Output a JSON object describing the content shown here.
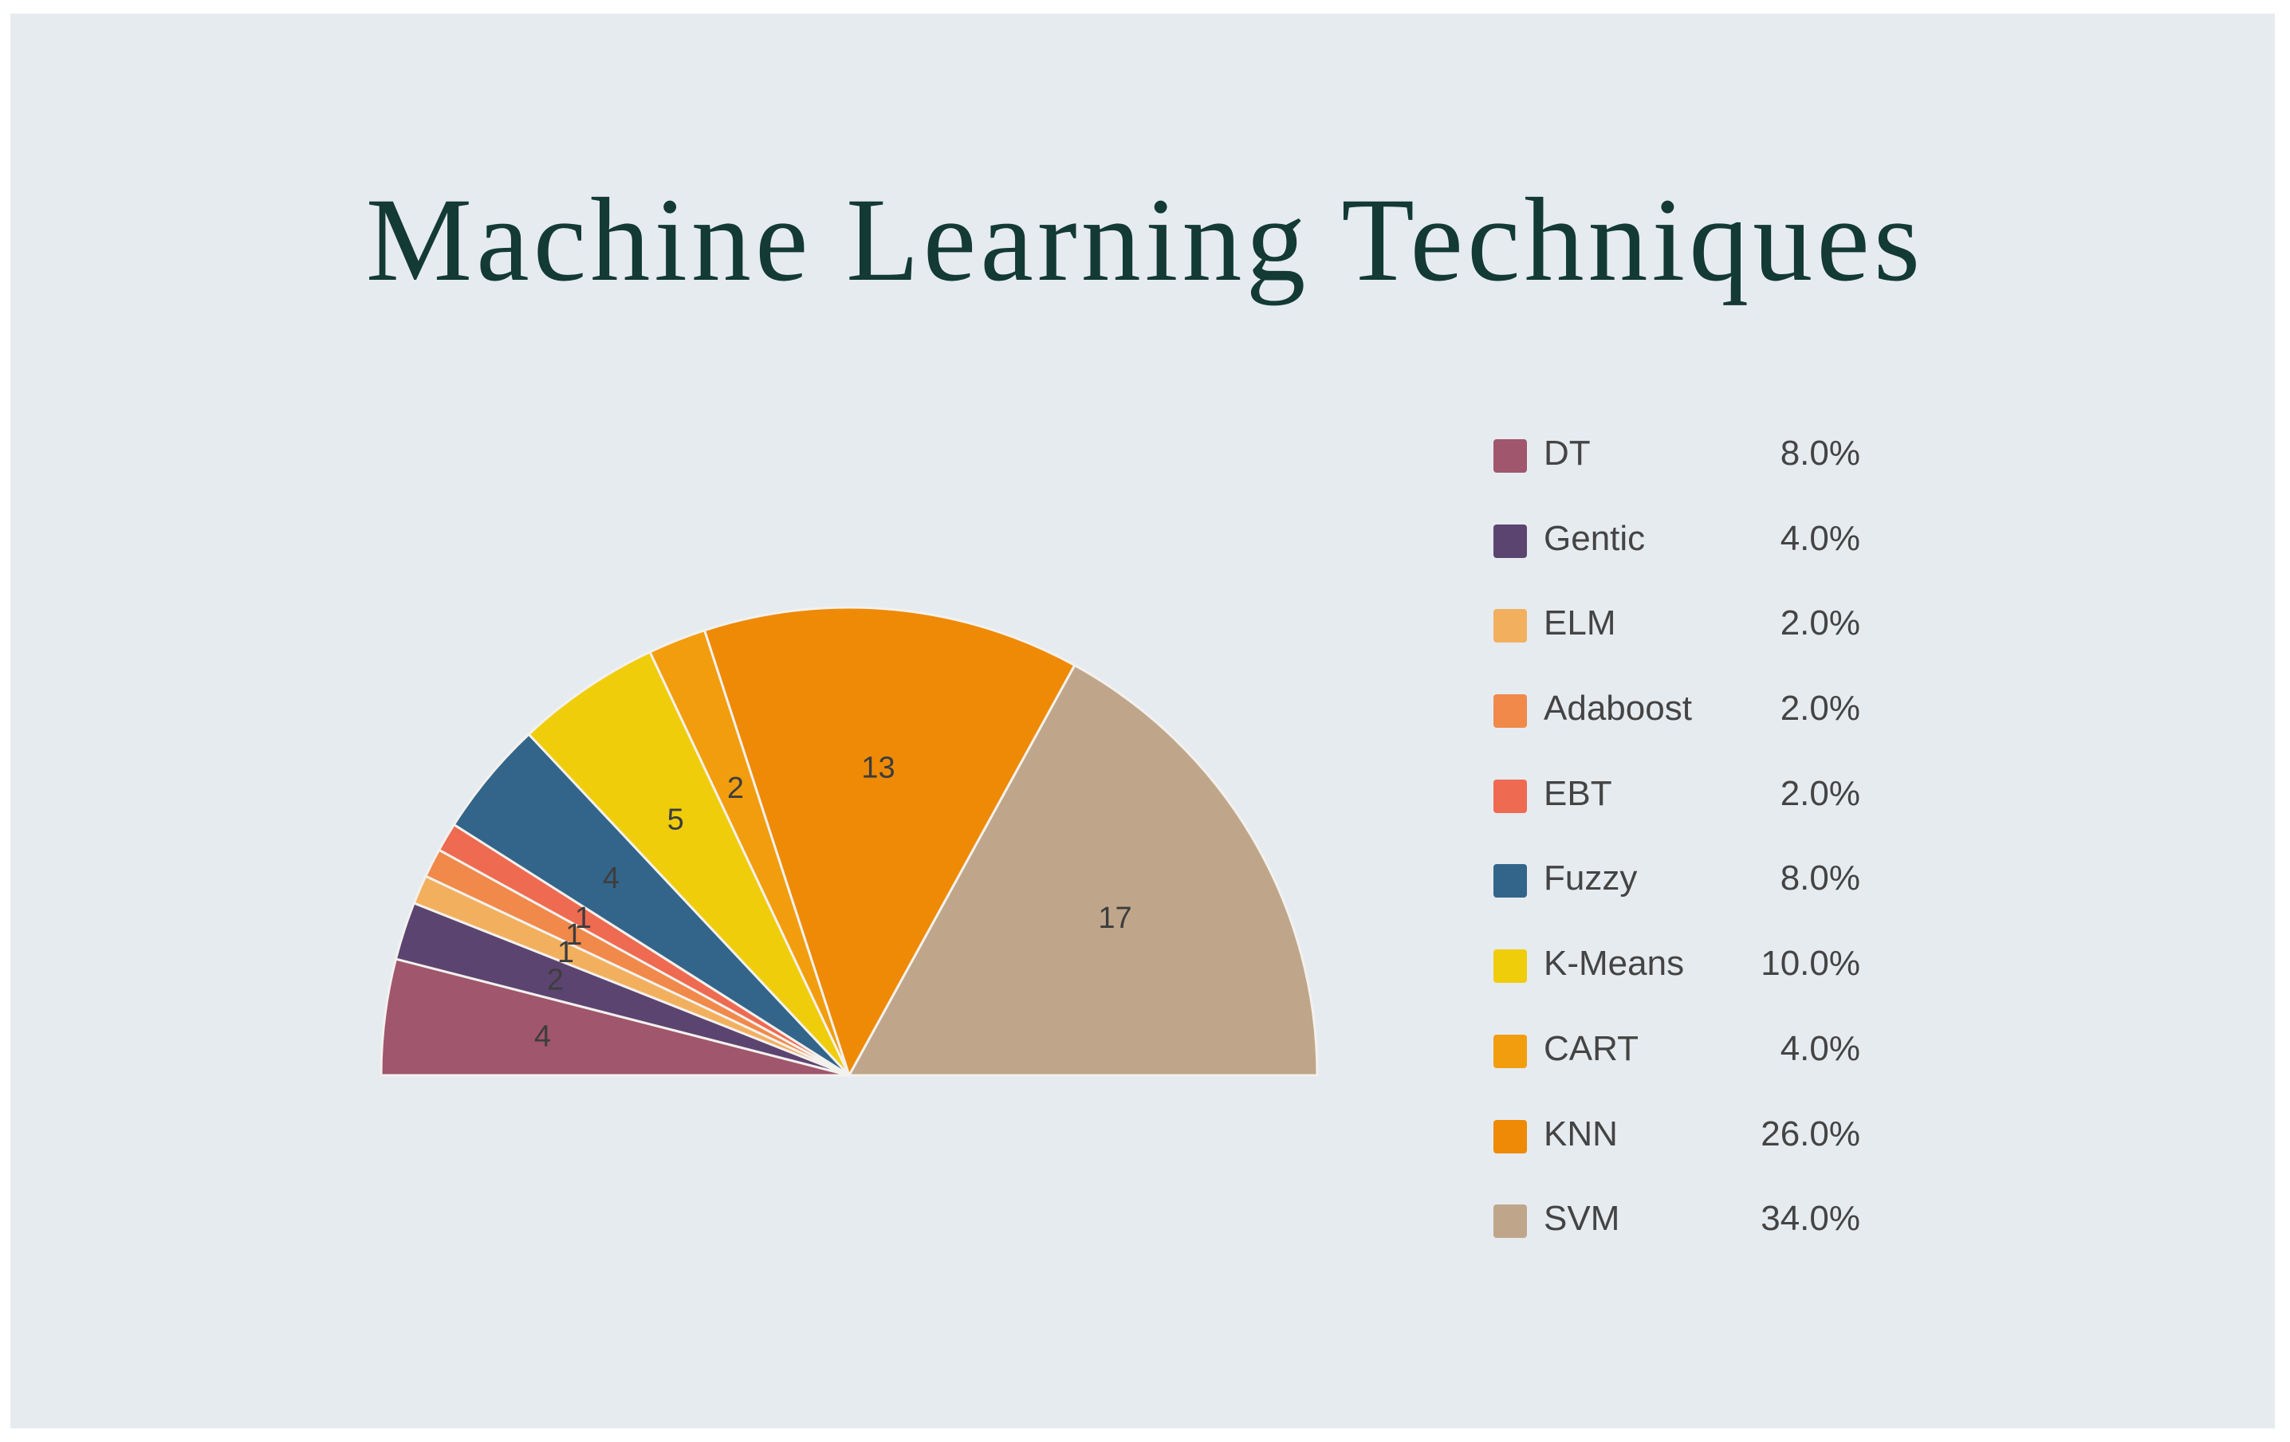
{
  "chart_data": {
    "type": "pie",
    "variant": "semicircle",
    "title": "Machine Learning Techniques",
    "slices": [
      {
        "label": "DT",
        "value": 4,
        "percent": "8.0%",
        "color": "#a0566c"
      },
      {
        "label": "Gentic",
        "value": 2,
        "percent": "4.0%",
        "color": "#5c4470"
      },
      {
        "label": "ELM",
        "value": 1,
        "percent": "2.0%",
        "color": "#f2b05f"
      },
      {
        "label": "Adaboost",
        "value": 1,
        "percent": "2.0%",
        "color": "#f0894a"
      },
      {
        "label": "EBT",
        "value": 1,
        "percent": "2.0%",
        "color": "#ee6a50"
      },
      {
        "label": "Fuzzy",
        "value": 4,
        "percent": "8.0%",
        "color": "#33658a"
      },
      {
        "label": "K-Means",
        "value": 5,
        "percent": "10.0%",
        "color": "#f0cd0b"
      },
      {
        "label": "CART",
        "value": 2,
        "percent": "4.0%",
        "color": "#f29d0e"
      },
      {
        "label": "KNN",
        "value": 13,
        "percent": "26.0%",
        "color": "#ee8a05"
      },
      {
        "label": "SVM",
        "value": 17,
        "percent": "34.0%",
        "color": "#bfa68a"
      }
    ],
    "legend_position": "right"
  }
}
